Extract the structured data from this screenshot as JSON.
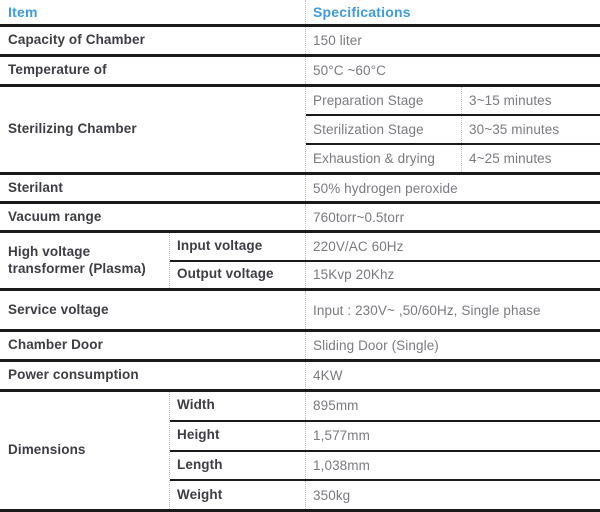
{
  "colors": {
    "header_blue": "#3F9BDC",
    "label_dark": "#3D3D45",
    "value_gray": "#7A7A81",
    "line_black": "#1A1A1A",
    "divider_dotted": "#B6C0D4"
  },
  "table": {
    "header": {
      "item": "Item",
      "specifications": "Specifications"
    },
    "rows": {
      "capacity": {
        "label": "Capacity of Chamber",
        "value": "150 liter"
      },
      "temperature": {
        "label": "Temperature of",
        "value": "50°C ~60°C"
      },
      "sterilizing": {
        "label": "Sterilizing Chamber",
        "subs": [
          {
            "key": "Preparation Stage",
            "value": "3~15 minutes"
          },
          {
            "key": "Sterilization Stage",
            "value": "30~35 minutes"
          },
          {
            "key": "Exhaustion & drying",
            "value": "4~25 minutes"
          }
        ]
      },
      "sterilant": {
        "label": "Sterilant",
        "value": "50% hydrogen peroxide"
      },
      "vacuum": {
        "label": "Vacuum range",
        "value": "760torr~0.5torr"
      },
      "transformer": {
        "label": "High voltage transformer (Plasma)",
        "subs": [
          {
            "key": "Input voltage",
            "value": "220V/AC 60Hz"
          },
          {
            "key": "Output voltage",
            "value": "15Kvp 20Khz"
          }
        ]
      },
      "service": {
        "label": "Service voltage",
        "value": "Input : 230V~ ,50/60Hz, Single phase"
      },
      "door": {
        "label": "Chamber Door",
        "value": "Sliding Door (Single)"
      },
      "power": {
        "label": "Power consumption",
        "value": "4KW"
      },
      "dimensions": {
        "label": "Dimensions",
        "subs": [
          {
            "key": "Width",
            "value": "895mm"
          },
          {
            "key": "Height",
            "value": "1,577mm"
          },
          {
            "key": "Length",
            "value": "1,038mm"
          },
          {
            "key": "Weight",
            "value": "350kg"
          }
        ]
      }
    }
  }
}
